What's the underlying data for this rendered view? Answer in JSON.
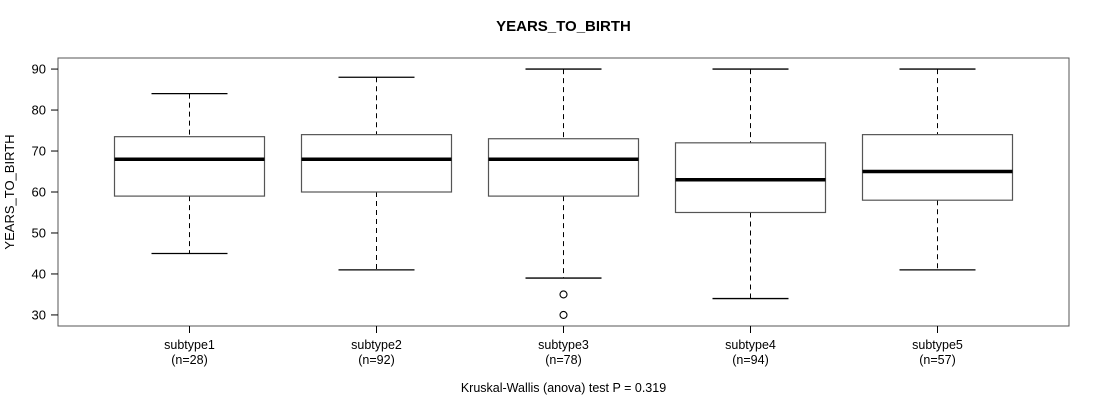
{
  "chart_data": {
    "type": "boxplot",
    "title": "YEARS_TO_BIRTH",
    "xlabel": "",
    "ylabel": "YEARS_TO_BIRTH",
    "caption": "Kruskal-Wallis (anova) test P = 0.319",
    "ylim": [
      27.3,
      92.7
    ],
    "yticks": [
      30,
      40,
      50,
      60,
      70,
      80,
      90
    ],
    "grid": false,
    "legend": "none",
    "categories": [
      "subtype1",
      "subtype2",
      "subtype3",
      "subtype4",
      "subtype5"
    ],
    "sublabels": [
      "(n=28)",
      "(n=92)",
      "(n=78)",
      "(n=94)",
      "(n=57)"
    ],
    "series": [
      {
        "name": "subtype1",
        "n": 28,
        "whisker_low": 45,
        "q1": 59,
        "median": 68,
        "q3": 73.5,
        "whisker_high": 84,
        "outliers": []
      },
      {
        "name": "subtype2",
        "n": 92,
        "whisker_low": 41,
        "q1": 60,
        "median": 68,
        "q3": 74,
        "whisker_high": 88,
        "outliers": []
      },
      {
        "name": "subtype3",
        "n": 78,
        "whisker_low": 39,
        "q1": 59,
        "median": 68,
        "q3": 73,
        "whisker_high": 90,
        "outliers": [
          35,
          30
        ]
      },
      {
        "name": "subtype4",
        "n": 94,
        "whisker_low": 34,
        "q1": 55,
        "median": 63,
        "q3": 72,
        "whisker_high": 90,
        "outliers": []
      },
      {
        "name": "subtype5",
        "n": 57,
        "whisker_low": 41,
        "q1": 58,
        "median": 65,
        "q3": 74,
        "whisker_high": 90,
        "outliers": []
      }
    ],
    "colors": {
      "background": "#ffffff",
      "frame": "#555555",
      "box_stroke": "#555555",
      "box_fill": "#ffffff",
      "line": "#000000",
      "median": "#000000",
      "text": "#000000"
    }
  }
}
